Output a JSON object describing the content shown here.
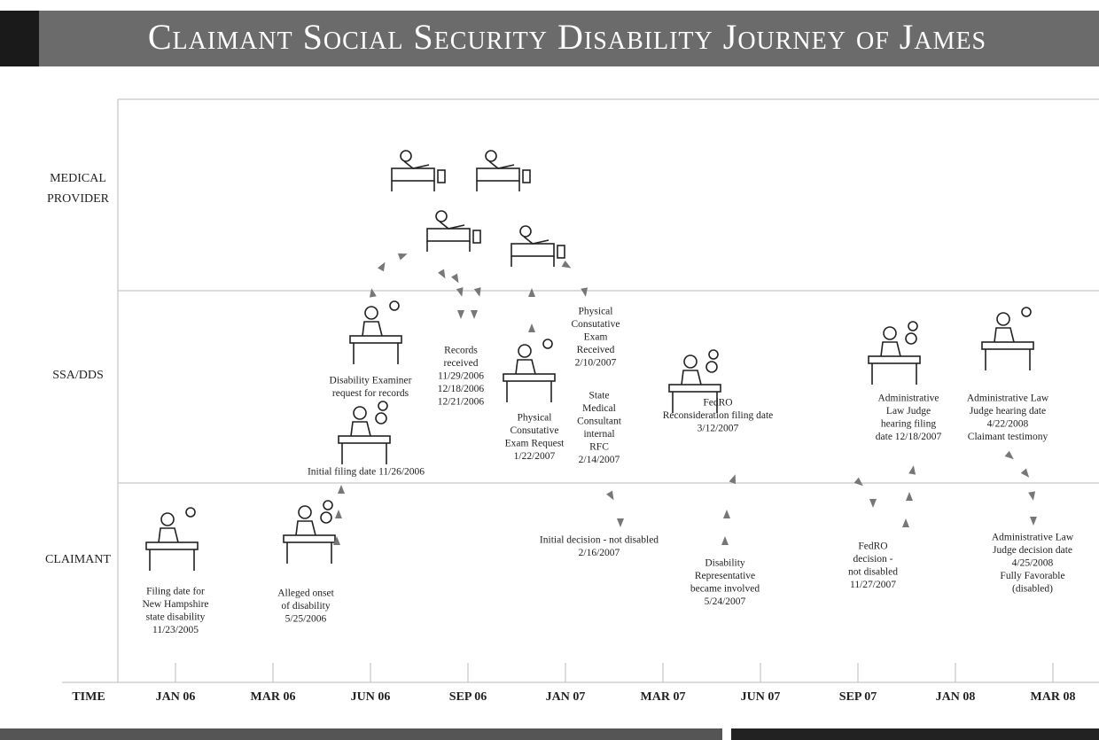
{
  "header": {
    "title": "Claimant Social Security Disability Journey of James"
  },
  "lanes": [
    {
      "label": [
        "MEDICAL",
        "PROVIDER"
      ]
    },
    {
      "label": [
        "SSA/DDS"
      ]
    },
    {
      "label": [
        "CLAIMANT"
      ]
    }
  ],
  "time_axis": {
    "label": "TIME",
    "months": [
      "JAN 06",
      "MAR 06",
      "JUN 06",
      "SEP 06",
      "JAN 07",
      "MAR 07",
      "JUN 07",
      "SEP 07",
      "JAN 08",
      "MAR 08"
    ]
  },
  "events": [
    {
      "lines": [
        "Filing date for",
        "New Hampshire",
        "state disability",
        "11/23/2005"
      ]
    },
    {
      "lines": [
        "Alleged onset",
        "of disability",
        "5/25/2006"
      ]
    },
    {
      "lines": [
        "Initial filing date 11/26/2006"
      ]
    },
    {
      "lines": [
        "Disability Examiner",
        "request for records"
      ]
    },
    {
      "lines": [
        "Records",
        "received",
        "11/29/2006",
        "12/18/2006",
        "12/21/2006"
      ]
    },
    {
      "lines": [
        "Physical",
        "Consutative",
        "Exam Request",
        "1/22/2007"
      ]
    },
    {
      "lines": [
        "Physical",
        "Consutative",
        "Exam",
        "Received",
        "2/10/2007"
      ]
    },
    {
      "lines": [
        "State",
        "Medical",
        "Consultant",
        "internal",
        "RFC",
        "2/14/2007"
      ]
    },
    {
      "lines": [
        "Initial decision - not disabled",
        "2/16/2007"
      ]
    },
    {
      "lines": [
        "FedRO",
        "Reconsideration filing date",
        "3/12/2007"
      ]
    },
    {
      "lines": [
        "Disability",
        "Representative",
        "became involved",
        "5/24/2007"
      ]
    },
    {
      "lines": [
        "FedRO",
        "decision -",
        "not disabled",
        "11/27/2007"
      ]
    },
    {
      "lines": [
        "Administrative",
        "Law Judge",
        "hearing filing",
        "date 12/18/2007"
      ]
    },
    {
      "lines": [
        "Administrative Law",
        "Judge hearing date",
        "4/22/2008",
        "Claimant testimony"
      ]
    },
    {
      "lines": [
        "Administrative Law",
        "Judge decision date",
        "4/25/2008",
        "Fully Favorable",
        "(disabled)"
      ]
    }
  ]
}
